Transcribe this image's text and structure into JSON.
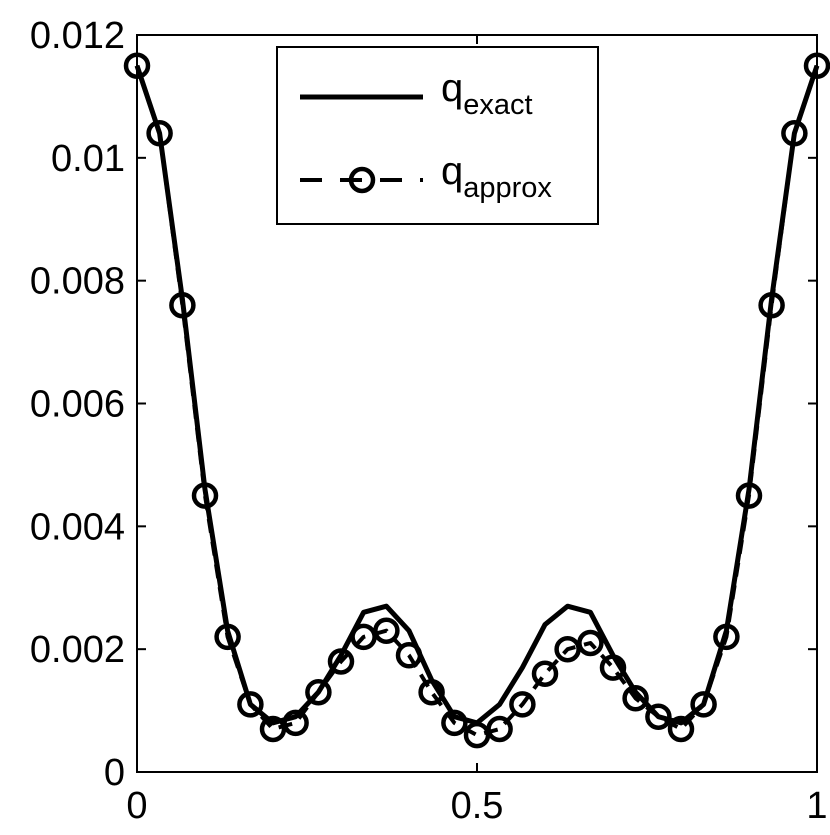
{
  "chart_data": {
    "type": "line",
    "title": "",
    "xlabel": "",
    "ylabel": "",
    "xlim": [
      0,
      1
    ],
    "ylim": [
      0,
      0.012
    ],
    "x_ticks": [
      {
        "value": 0,
        "label": "0"
      },
      {
        "value": 0.5,
        "label": "0.5"
      },
      {
        "value": 1,
        "label": "1"
      }
    ],
    "y_ticks": [
      {
        "value": 0,
        "label": "0"
      },
      {
        "value": 0.002,
        "label": "0.002"
      },
      {
        "value": 0.004,
        "label": "0.004"
      },
      {
        "value": 0.006,
        "label": "0.006"
      },
      {
        "value": 0.008,
        "label": "0.008"
      },
      {
        "value": 0.01,
        "label": "0.01"
      },
      {
        "value": 0.012,
        "label": "0.012"
      }
    ],
    "grid": false,
    "legend_position": "top-center",
    "series": [
      {
        "key": "exact",
        "legend_base": "q",
        "legend_sub": "exact",
        "style": "solid",
        "marker": "none",
        "color": "#000000",
        "x": [
          0,
          0.0333,
          0.0667,
          0.1,
          0.1333,
          0.1667,
          0.2,
          0.2333,
          0.2667,
          0.3,
          0.3333,
          0.3667,
          0.4,
          0.4333,
          0.4667,
          0.5,
          0.5333,
          0.5667,
          0.6,
          0.6333,
          0.6667,
          0.7,
          0.7333,
          0.7667,
          0.8,
          0.8333,
          0.8667,
          0.9,
          0.9333,
          0.9667,
          1
        ],
        "y": [
          0.0115,
          0.0104,
          0.0077,
          0.0046,
          0.0023,
          0.0011,
          0.0008,
          0.0009,
          0.0013,
          0.0019,
          0.0026,
          0.0027,
          0.0023,
          0.0015,
          0.0009,
          0.0008,
          0.0011,
          0.0017,
          0.0024,
          0.0027,
          0.0026,
          0.0019,
          0.0013,
          0.0009,
          0.0008,
          0.0011,
          0.0023,
          0.0046,
          0.0077,
          0.0104,
          0.0115
        ]
      },
      {
        "key": "approx",
        "legend_base": "q",
        "legend_sub": "approx",
        "style": "dashed",
        "marker": "circle",
        "color": "#000000",
        "x": [
          0,
          0.0333,
          0.0667,
          0.1,
          0.1333,
          0.1667,
          0.2,
          0.2333,
          0.2667,
          0.3,
          0.3333,
          0.3667,
          0.4,
          0.4333,
          0.4667,
          0.5,
          0.5333,
          0.5667,
          0.6,
          0.6333,
          0.6667,
          0.7,
          0.7333,
          0.7667,
          0.8,
          0.8333,
          0.8667,
          0.9,
          0.9333,
          0.9667,
          1
        ],
        "y": [
          0.0115,
          0.0104,
          0.0076,
          0.0045,
          0.0022,
          0.0011,
          0.0007,
          0.0008,
          0.0013,
          0.0018,
          0.0022,
          0.0023,
          0.0019,
          0.0013,
          0.0008,
          0.0006,
          0.0007,
          0.0011,
          0.0016,
          0.002,
          0.0021,
          0.0017,
          0.0012,
          0.0009,
          0.0007,
          0.0011,
          0.0022,
          0.0045,
          0.0076,
          0.0104,
          0.0115
        ]
      }
    ]
  }
}
